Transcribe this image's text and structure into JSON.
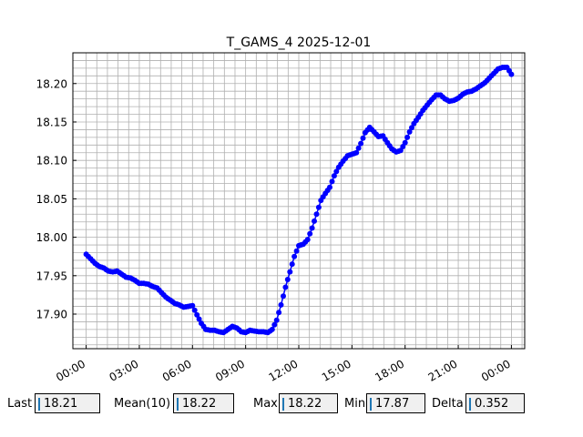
{
  "chart_data": {
    "type": "line",
    "title": "T_GAMS_4 2025-12-01",
    "xlabel": "",
    "ylabel": "",
    "x_unit": "hours from 2025-12-01 00:00",
    "xlim": [
      -0.75,
      24.75
    ],
    "ylim": [
      17.855,
      18.24
    ],
    "xticks": [
      0,
      3,
      6,
      9,
      12,
      15,
      18,
      21,
      24
    ],
    "xtick_labels": [
      "00:00",
      "03:00",
      "06:00",
      "09:00",
      "12:00",
      "15:00",
      "18:00",
      "21:00",
      "00:00"
    ],
    "yticks": [
      17.9,
      17.95,
      18.0,
      18.05,
      18.1,
      18.15,
      18.2
    ],
    "ytick_labels": [
      "17.90",
      "17.95",
      "18.00",
      "18.05",
      "18.10",
      "18.15",
      "18.20"
    ],
    "grid": true,
    "minor_grid": true,
    "legend": false,
    "line_color": "#0000ff",
    "marker": "circle",
    "series": [
      {
        "x": [
          0.0,
          0.25,
          0.5,
          0.75,
          1.0,
          1.25,
          1.5,
          1.75,
          2.0,
          2.25,
          2.5,
          2.75,
          3.0,
          3.25,
          3.5,
          3.75,
          4.0,
          4.25,
          4.5,
          4.75,
          5.0,
          5.25,
          5.5,
          5.75,
          6.0,
          6.25,
          6.5,
          6.75,
          7.0,
          7.25,
          7.5,
          7.75,
          8.0,
          8.25,
          8.5,
          8.75,
          9.0,
          9.25,
          9.5,
          9.75,
          10.0,
          10.25,
          10.5,
          10.75,
          11.0,
          11.25,
          11.5,
          11.75,
          12.0,
          12.25,
          12.5,
          12.75,
          13.0,
          13.25,
          13.5,
          13.75,
          14.0,
          14.25,
          14.5,
          14.75,
          15.0,
          15.25,
          15.5,
          15.75,
          16.0,
          16.25,
          16.5,
          16.75,
          17.0,
          17.25,
          17.5,
          17.75,
          18.0,
          18.25,
          18.5,
          18.75,
          19.0,
          19.25,
          19.5,
          19.75,
          20.0,
          20.25,
          20.5,
          20.75,
          21.0,
          21.25,
          21.5,
          21.75,
          22.0,
          22.25,
          22.5,
          22.75,
          23.0,
          23.25,
          23.5,
          23.75,
          24.0
        ],
        "y": [
          17.978,
          17.972,
          17.966,
          17.962,
          17.96,
          17.956,
          17.955,
          17.956,
          17.952,
          17.948,
          17.947,
          17.944,
          17.94,
          17.94,
          17.939,
          17.936,
          17.934,
          17.928,
          17.922,
          17.918,
          17.914,
          17.912,
          17.909,
          17.91,
          17.911,
          17.899,
          17.888,
          17.88,
          17.879,
          17.879,
          17.877,
          17.876,
          17.88,
          17.884,
          17.882,
          17.877,
          17.876,
          17.879,
          17.878,
          17.877,
          17.877,
          17.876,
          17.88,
          17.892,
          17.912,
          17.935,
          17.955,
          17.975,
          17.989,
          17.991,
          17.997,
          18.012,
          18.03,
          18.048,
          18.057,
          18.065,
          18.08,
          18.091,
          18.099,
          18.106,
          18.108,
          18.11,
          18.122,
          18.136,
          18.143,
          18.137,
          18.131,
          18.132,
          18.123,
          18.115,
          18.111,
          18.113,
          18.123,
          18.137,
          18.148,
          18.156,
          18.165,
          18.172,
          18.179,
          18.185,
          18.185,
          18.18,
          18.177,
          18.178,
          18.181,
          18.186,
          18.189,
          18.19,
          18.193,
          18.197,
          18.201,
          18.207,
          18.213,
          18.219,
          18.221,
          18.221,
          18.212
        ]
      }
    ]
  },
  "stats": {
    "last": {
      "label": "Last",
      "value": "18.21"
    },
    "mean": {
      "label": "Mean(10)",
      "value": "18.22"
    },
    "max": {
      "label": "Max",
      "value": "18.22"
    },
    "min": {
      "label": "Min",
      "value": "17.87"
    },
    "delta": {
      "label": "Delta",
      "value": "0.352"
    }
  }
}
